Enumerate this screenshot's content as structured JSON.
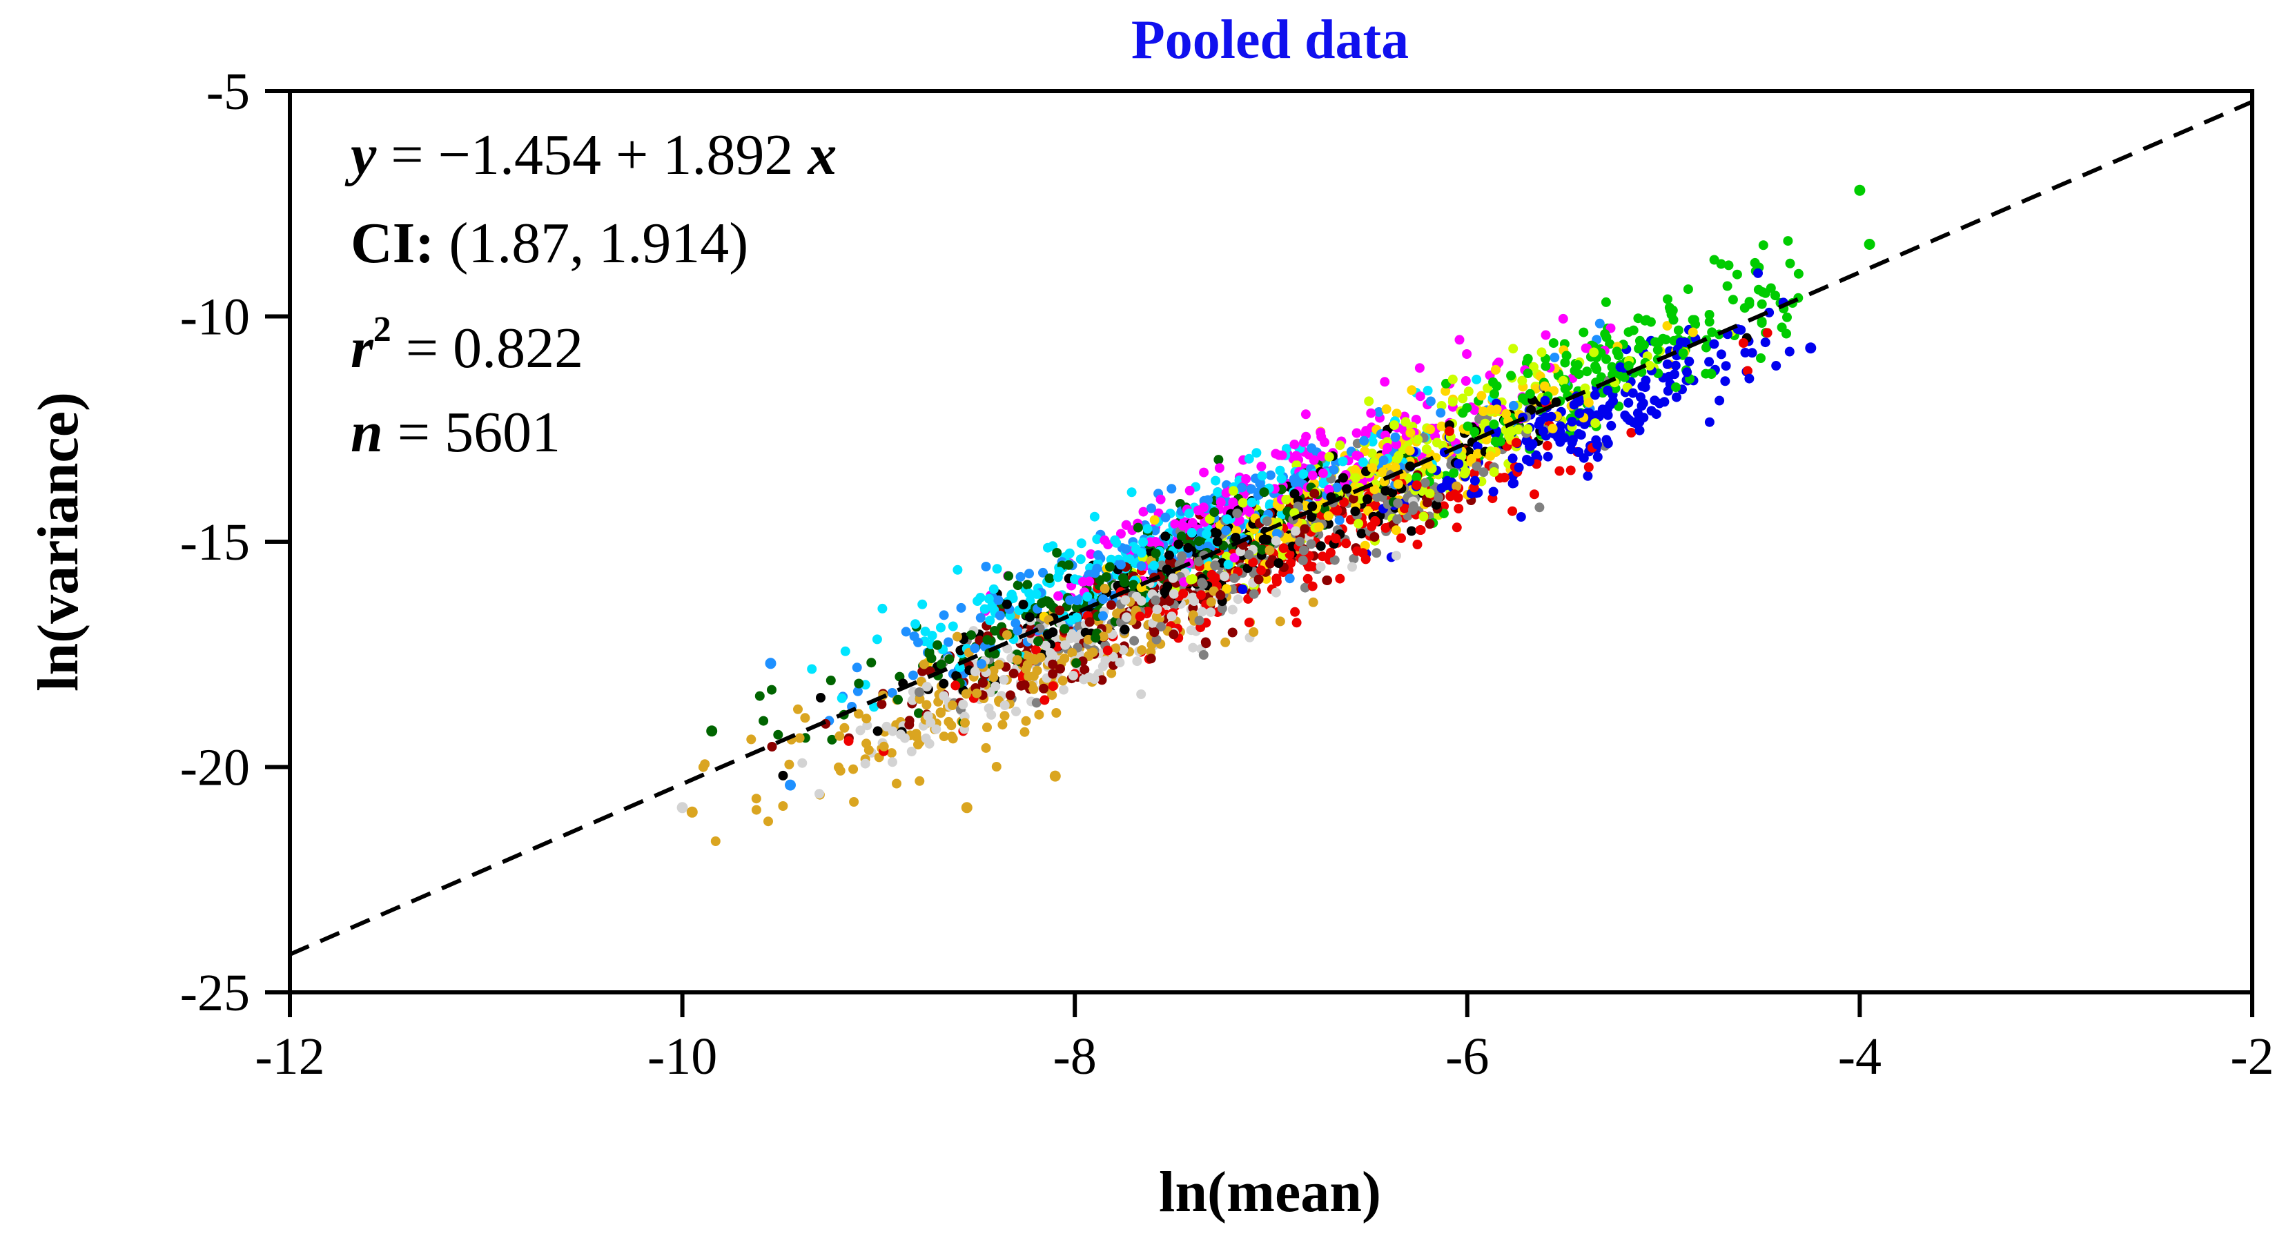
{
  "chart_data": {
    "type": "scatter",
    "title": "Pooled data",
    "xlabel": "ln(mean)",
    "ylabel": "ln(variance)",
    "xlim": [
      -12,
      -2
    ],
    "ylim": [
      -25,
      -5
    ],
    "xticks": [
      -12,
      -10,
      -8,
      -6,
      -4,
      -2
    ],
    "yticks": [
      -25,
      -20,
      -15,
      -10,
      -5
    ],
    "grid": false,
    "legend": "none",
    "colors": {
      "title": "#1010ee",
      "fit_line": "#000000",
      "groups": [
        "#00cc00",
        "#0000ee",
        "#ff00ff",
        "#00e5ff",
        "#ccff00",
        "#ee0000",
        "#808080",
        "#d3d3d3",
        "#daa520",
        "#006400",
        "#8b0000",
        "#1e90ff",
        "#ffd700",
        "#000000"
      ]
    },
    "fit": {
      "intercept": -1.454,
      "slope": 1.892,
      "style": "dashed"
    },
    "stats": {
      "equation_y": "y",
      "equation_rest": " = −1.454 + 1.892 ",
      "equation_x": "x",
      "ci_label": "CI:",
      "ci_value": " (1.87, 1.914)",
      "r2_symbol": "r",
      "r2_power": "2",
      "r2_value": " = 0.822",
      "n_symbol": "n",
      "n_value": " = 5601"
    },
    "series_summary": {
      "n_points": 5601,
      "x_range": [
        -10.0,
        -4.0
      ],
      "y_residual_sd": 0.9
    },
    "notable_points": [
      {
        "x": -4.0,
        "y": -7.2,
        "color": "#00cc00"
      },
      {
        "x": -3.95,
        "y": -8.4,
        "color": "#00cc00"
      },
      {
        "x": -4.25,
        "y": -10.7,
        "color": "#0000ee"
      },
      {
        "x": -10.0,
        "y": -20.9,
        "color": "#d3d3d3"
      },
      {
        "x": -9.95,
        "y": -21.0,
        "color": "#daa520"
      },
      {
        "x": -8.55,
        "y": -20.9,
        "color": "#daa520"
      },
      {
        "x": -9.85,
        "y": -19.2,
        "color": "#006400"
      },
      {
        "x": -9.55,
        "y": -17.7,
        "color": "#1e90ff"
      },
      {
        "x": -9.45,
        "y": -20.4,
        "color": "#1e90ff"
      },
      {
        "x": -8.1,
        "y": -20.2,
        "color": "#daa520"
      }
    ]
  }
}
